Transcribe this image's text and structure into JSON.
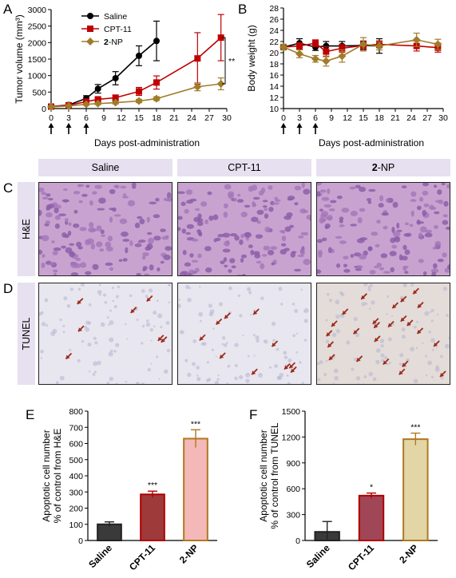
{
  "panel_labels": {
    "A": "A",
    "B": "B",
    "C": "C",
    "D": "D",
    "E": "E",
    "F": "F"
  },
  "chart_data": [
    {
      "id": "A",
      "type": "line",
      "xlabel": "Days post-administration",
      "ylabel": "Tumor volume (mm³)",
      "xlim": [
        0,
        30
      ],
      "ylim": [
        0,
        3000
      ],
      "xticks": [
        0,
        3,
        6,
        9,
        12,
        15,
        18,
        21,
        24,
        27,
        30
      ],
      "yticks": [
        0,
        500,
        1000,
        1500,
        2000,
        2500,
        3000
      ],
      "dosing_days": [
        0,
        3,
        6
      ],
      "legend_position": "top-left",
      "series": [
        {
          "name": "Saline",
          "marker": "circle",
          "color": "#000000",
          "x": [
            0,
            3,
            6,
            8,
            11,
            15,
            18
          ],
          "y": [
            60,
            110,
            310,
            600,
            920,
            1600,
            2050
          ],
          "err": [
            20,
            30,
            80,
            130,
            200,
            300,
            600
          ]
        },
        {
          "name": "CPT-11",
          "marker": "square",
          "color": "#c00000",
          "x": [
            0,
            3,
            6,
            8,
            11,
            15,
            18,
            25,
            29
          ],
          "y": [
            60,
            100,
            210,
            280,
            330,
            520,
            790,
            1520,
            2150
          ],
          "err": [
            15,
            25,
            50,
            60,
            80,
            120,
            200,
            780,
            700
          ]
        },
        {
          "name": "2-NP",
          "marker": "diamond",
          "color": "#a07c2a",
          "name_bold_part": "2",
          "x": [
            0,
            3,
            6,
            8,
            11,
            15,
            18,
            25,
            29
          ],
          "y": [
            50,
            80,
            130,
            150,
            180,
            230,
            300,
            660,
            750
          ],
          "err": [
            10,
            20,
            30,
            30,
            40,
            50,
            60,
            120,
            180
          ]
        }
      ],
      "annotation": "**"
    },
    {
      "id": "B",
      "type": "line",
      "xlabel": "Days post-administration",
      "ylabel": "Body weight (g)",
      "xlim": [
        0,
        30
      ],
      "ylim": [
        10,
        28
      ],
      "xticks": [
        0,
        3,
        6,
        9,
        12,
        15,
        18,
        21,
        24,
        27,
        30
      ],
      "yticks": [
        10,
        12,
        14,
        16,
        18,
        20,
        22,
        24,
        26,
        28
      ],
      "dosing_days": [
        0,
        3,
        6
      ],
      "series": [
        {
          "name": "Saline",
          "color": "#000000",
          "marker": "circle",
          "x": [
            0,
            3,
            6,
            8,
            11,
            15,
            18
          ],
          "y": [
            21,
            21.7,
            21,
            21.2,
            21.2,
            21.3,
            21.2
          ],
          "err": [
            0.5,
            0.8,
            0.6,
            0.8,
            0.8,
            0.7,
            1.3
          ]
        },
        {
          "name": "CPT-11",
          "color": "#c00000",
          "marker": "square",
          "x": [
            0,
            3,
            6,
            8,
            11,
            15,
            18,
            25,
            29
          ],
          "y": [
            21,
            21.2,
            21.7,
            20.2,
            20.8,
            21.3,
            21.5,
            21.2,
            20.9
          ],
          "err": [
            0.4,
            0.6,
            0.6,
            0.9,
            0.7,
            0.8,
            0.6,
            0.9,
            0.8
          ]
        },
        {
          "name": "2-NP",
          "color": "#a07c2a",
          "marker": "diamond",
          "x": [
            0,
            3,
            6,
            8,
            11,
            15,
            18,
            25,
            29
          ],
          "y": [
            21,
            19.8,
            18.9,
            18.5,
            19.4,
            21.5,
            21.2,
            22.3,
            21.5
          ],
          "err": [
            0.5,
            0.7,
            0.6,
            0.9,
            1.1,
            1.2,
            0.7,
            1.2,
            0.9
          ]
        }
      ]
    },
    {
      "id": "E",
      "type": "bar",
      "ylabel_lines": [
        "Apoptotic cell number",
        "% of control from H&E"
      ],
      "categories": [
        "Saline",
        "CPT-11",
        "2-NP"
      ],
      "values": [
        100,
        285,
        630
      ],
      "err": [
        15,
        20,
        55
      ],
      "significance": [
        "",
        "***",
        "***"
      ],
      "ylim": [
        0,
        800
      ],
      "yticks": [
        0,
        100,
        200,
        300,
        400,
        500,
        600,
        700,
        800
      ],
      "fills": [
        "#3a3a3a",
        "#9e3a3a",
        "#f4b8b8"
      ],
      "strokes": [
        "#222222",
        "#b00000",
        "#b07820"
      ]
    },
    {
      "id": "F",
      "type": "bar",
      "ylabel_lines": [
        "Apoptotic cell number",
        "% of control from TUNEL"
      ],
      "categories": [
        "Saline",
        "CPT-11",
        "2-NP"
      ],
      "values": [
        100,
        520,
        1175
      ],
      "err": [
        120,
        30,
        70
      ],
      "significance": [
        "",
        "*",
        "***"
      ],
      "ylim": [
        0,
        1500
      ],
      "yticks": [
        0,
        300,
        600,
        900,
        1200,
        1500
      ],
      "fills": [
        "#3a3a3a",
        "#a04656",
        "#e2d6a6"
      ],
      "strokes": [
        "#222222",
        "#b00000",
        "#b07820"
      ]
    }
  ],
  "histology": {
    "columns": [
      "Saline",
      "CPT-11",
      "2-NP"
    ],
    "rows": [
      "H&E",
      "TUNEL"
    ]
  }
}
